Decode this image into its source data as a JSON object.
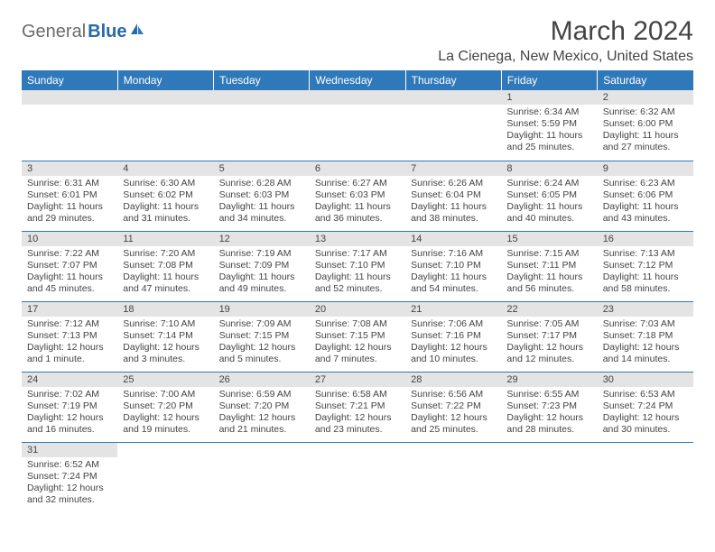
{
  "logo": {
    "part1": "General",
    "part2": "Blue"
  },
  "title": "March 2024",
  "location": "La Cienega, New Mexico, United States",
  "colors": {
    "header_bg": "#2f79bb",
    "header_text": "#ffffff",
    "daynum_bg": "#e4e4e4",
    "text": "#444444",
    "row_border": "#2f79bb"
  },
  "weekdays": [
    "Sunday",
    "Monday",
    "Tuesday",
    "Wednesday",
    "Thursday",
    "Friday",
    "Saturday"
  ],
  "first_day_col": 5,
  "days": {
    "1": {
      "sunrise": "6:34 AM",
      "sunset": "5:59 PM",
      "daylight": "11 hours and 25 minutes."
    },
    "2": {
      "sunrise": "6:32 AM",
      "sunset": "6:00 PM",
      "daylight": "11 hours and 27 minutes."
    },
    "3": {
      "sunrise": "6:31 AM",
      "sunset": "6:01 PM",
      "daylight": "11 hours and 29 minutes."
    },
    "4": {
      "sunrise": "6:30 AM",
      "sunset": "6:02 PM",
      "daylight": "11 hours and 31 minutes."
    },
    "5": {
      "sunrise": "6:28 AM",
      "sunset": "6:03 PM",
      "daylight": "11 hours and 34 minutes."
    },
    "6": {
      "sunrise": "6:27 AM",
      "sunset": "6:03 PM",
      "daylight": "11 hours and 36 minutes."
    },
    "7": {
      "sunrise": "6:26 AM",
      "sunset": "6:04 PM",
      "daylight": "11 hours and 38 minutes."
    },
    "8": {
      "sunrise": "6:24 AM",
      "sunset": "6:05 PM",
      "daylight": "11 hours and 40 minutes."
    },
    "9": {
      "sunrise": "6:23 AM",
      "sunset": "6:06 PM",
      "daylight": "11 hours and 43 minutes."
    },
    "10": {
      "sunrise": "7:22 AM",
      "sunset": "7:07 PM",
      "daylight": "11 hours and 45 minutes."
    },
    "11": {
      "sunrise": "7:20 AM",
      "sunset": "7:08 PM",
      "daylight": "11 hours and 47 minutes."
    },
    "12": {
      "sunrise": "7:19 AM",
      "sunset": "7:09 PM",
      "daylight": "11 hours and 49 minutes."
    },
    "13": {
      "sunrise": "7:17 AM",
      "sunset": "7:10 PM",
      "daylight": "11 hours and 52 minutes."
    },
    "14": {
      "sunrise": "7:16 AM",
      "sunset": "7:10 PM",
      "daylight": "11 hours and 54 minutes."
    },
    "15": {
      "sunrise": "7:15 AM",
      "sunset": "7:11 PM",
      "daylight": "11 hours and 56 minutes."
    },
    "16": {
      "sunrise": "7:13 AM",
      "sunset": "7:12 PM",
      "daylight": "11 hours and 58 minutes."
    },
    "17": {
      "sunrise": "7:12 AM",
      "sunset": "7:13 PM",
      "daylight": "12 hours and 1 minute."
    },
    "18": {
      "sunrise": "7:10 AM",
      "sunset": "7:14 PM",
      "daylight": "12 hours and 3 minutes."
    },
    "19": {
      "sunrise": "7:09 AM",
      "sunset": "7:15 PM",
      "daylight": "12 hours and 5 minutes."
    },
    "20": {
      "sunrise": "7:08 AM",
      "sunset": "7:15 PM",
      "daylight": "12 hours and 7 minutes."
    },
    "21": {
      "sunrise": "7:06 AM",
      "sunset": "7:16 PM",
      "daylight": "12 hours and 10 minutes."
    },
    "22": {
      "sunrise": "7:05 AM",
      "sunset": "7:17 PM",
      "daylight": "12 hours and 12 minutes."
    },
    "23": {
      "sunrise": "7:03 AM",
      "sunset": "7:18 PM",
      "daylight": "12 hours and 14 minutes."
    },
    "24": {
      "sunrise": "7:02 AM",
      "sunset": "7:19 PM",
      "daylight": "12 hours and 16 minutes."
    },
    "25": {
      "sunrise": "7:00 AM",
      "sunset": "7:20 PM",
      "daylight": "12 hours and 19 minutes."
    },
    "26": {
      "sunrise": "6:59 AM",
      "sunset": "7:20 PM",
      "daylight": "12 hours and 21 minutes."
    },
    "27": {
      "sunrise": "6:58 AM",
      "sunset": "7:21 PM",
      "daylight": "12 hours and 23 minutes."
    },
    "28": {
      "sunrise": "6:56 AM",
      "sunset": "7:22 PM",
      "daylight": "12 hours and 25 minutes."
    },
    "29": {
      "sunrise": "6:55 AM",
      "sunset": "7:23 PM",
      "daylight": "12 hours and 28 minutes."
    },
    "30": {
      "sunrise": "6:53 AM",
      "sunset": "7:24 PM",
      "daylight": "12 hours and 30 minutes."
    },
    "31": {
      "sunrise": "6:52 AM",
      "sunset": "7:24 PM",
      "daylight": "12 hours and 32 minutes."
    }
  },
  "num_days": 31,
  "labels": {
    "sunrise": "Sunrise:",
    "sunset": "Sunset:",
    "daylight": "Daylight:"
  }
}
